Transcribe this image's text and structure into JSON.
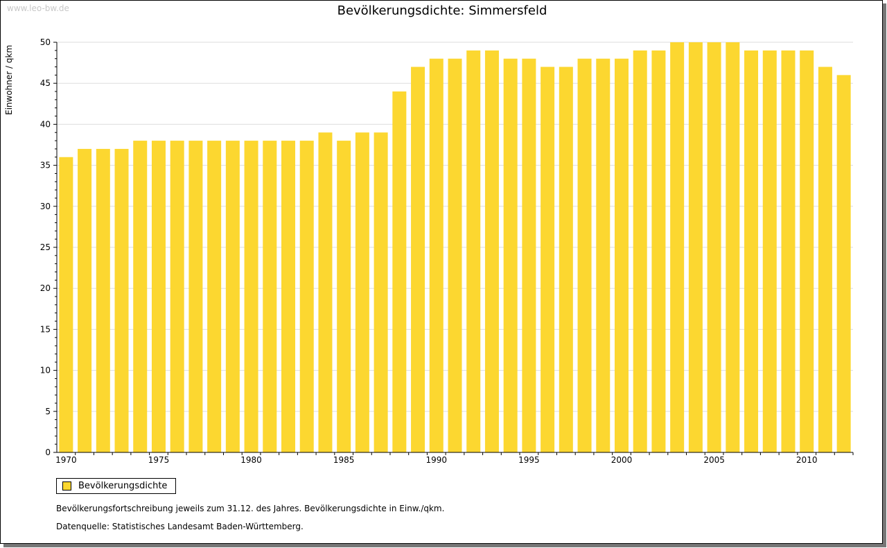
{
  "watermark": "www.leo-bw.de",
  "colors": {
    "bar": "#fcd730",
    "grid": "#dddddd"
  },
  "chart_data": {
    "type": "bar",
    "title": "Bevölkerungsdichte: Simmersfeld",
    "xlabel": "",
    "ylabel": "Einwohner / qkm",
    "ylim": [
      0,
      50
    ],
    "yticks": [
      0,
      5,
      10,
      15,
      20,
      25,
      30,
      35,
      40,
      45,
      50
    ],
    "xtick_labels": [
      "1970",
      "1975",
      "1980",
      "1985",
      "1990",
      "1995",
      "2000",
      "2005",
      "2010"
    ],
    "grid": true,
    "legend_position": "bottom-left",
    "categories": [
      1970,
      1971,
      1972,
      1973,
      1974,
      1975,
      1976,
      1977,
      1978,
      1979,
      1980,
      1981,
      1982,
      1983,
      1984,
      1985,
      1986,
      1987,
      1988,
      1989,
      1990,
      1991,
      1992,
      1993,
      1994,
      1995,
      1996,
      1997,
      1998,
      1999,
      2000,
      2001,
      2002,
      2003,
      2004,
      2005,
      2006,
      2007,
      2008,
      2009,
      2010,
      2011,
      2012
    ],
    "series": [
      {
        "name": "Bevölkerungsdichte",
        "values": [
          36,
          37,
          37,
          37,
          38,
          38,
          38,
          38,
          38,
          38,
          38,
          38,
          38,
          38,
          39,
          38,
          39,
          39,
          44,
          47,
          48,
          48,
          49,
          49,
          48,
          48,
          47,
          47,
          48,
          48,
          48,
          49,
          49,
          50,
          50,
          50,
          50,
          49,
          49,
          49,
          49,
          47,
          46
        ]
      }
    ]
  },
  "notes": [
    "Bevölkerungsfortschreibung jeweils zum 31.12. des Jahres. Bevölkerungsdichte in Einw./qkm.",
    "Datenquelle: Statistisches Landesamt Baden-Württemberg."
  ]
}
